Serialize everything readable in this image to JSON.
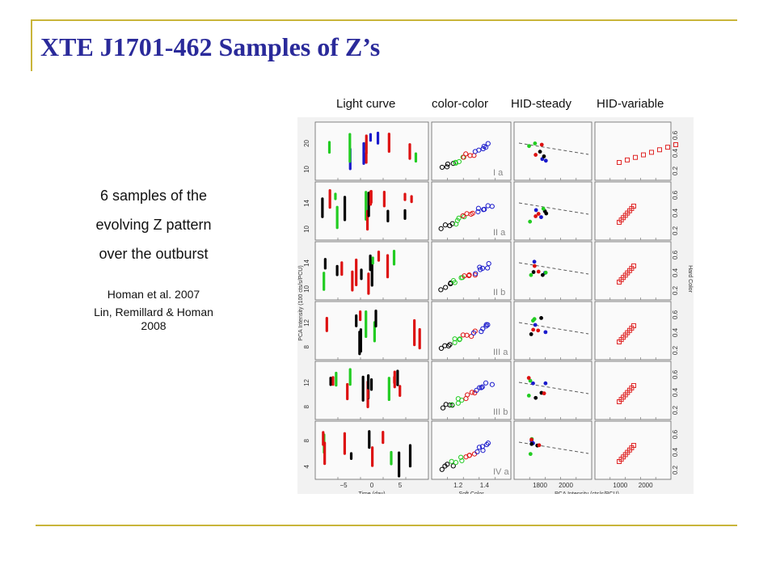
{
  "slide": {
    "title": "XTE J1701-462 Samples of Z’s",
    "column_labels": [
      "Light curve",
      "color-color",
      "HID-steady",
      "HID-variable"
    ],
    "description_lines": [
      "6 samples of the",
      "evolving Z pattern",
      "over the outburst"
    ],
    "reference_1": "Homan et al. 2007",
    "reference_2_lines": [
      "Lin, Remillard & Homan",
      "2008"
    ]
  },
  "colors": {
    "title": "#2a2a9a",
    "rule": "#c9b53a",
    "series_blue": "#1a1acc",
    "series_green": "#22cc22",
    "series_red": "#dd1111",
    "series_black": "#000000",
    "series_brown": "#7a4a20"
  },
  "chart_data": {
    "type": "scatter",
    "rows": [
      {
        "label": "I a",
        "lc_yticks": [
          "10",
          "20"
        ]
      },
      {
        "label": "II a",
        "lc_yticks": [
          "10",
          "14"
        ]
      },
      {
        "label": "II b",
        "lc_yticks": [
          "10",
          "14"
        ]
      },
      {
        "label": "III a",
        "lc_yticks": [
          "8",
          "12"
        ]
      },
      {
        "label": "III b",
        "lc_yticks": [
          "8",
          "12"
        ]
      },
      {
        "label": "IV a",
        "lc_yticks": [
          "4",
          "8"
        ]
      }
    ],
    "hard_color_ticks": [
      "0.2",
      "0.4",
      "0.6"
    ],
    "xlabels": {
      "light_curve": "Time (day)",
      "color_color": "Soft Color",
      "hid": "PCA Intensity (cts/s/PCU)"
    },
    "xticks": {
      "light_curve": [
        "−5",
        "0",
        "5"
      ],
      "color_color": [
        "1.2",
        "1.4"
      ],
      "hid_steady": [
        "1800",
        "2000"
      ],
      "hid_variable": [
        "1000",
        "2000"
      ]
    },
    "ylabel_left": "PCA Intensity (100 cts/s/PCU)",
    "ylabel_right": "Hard Color"
  }
}
